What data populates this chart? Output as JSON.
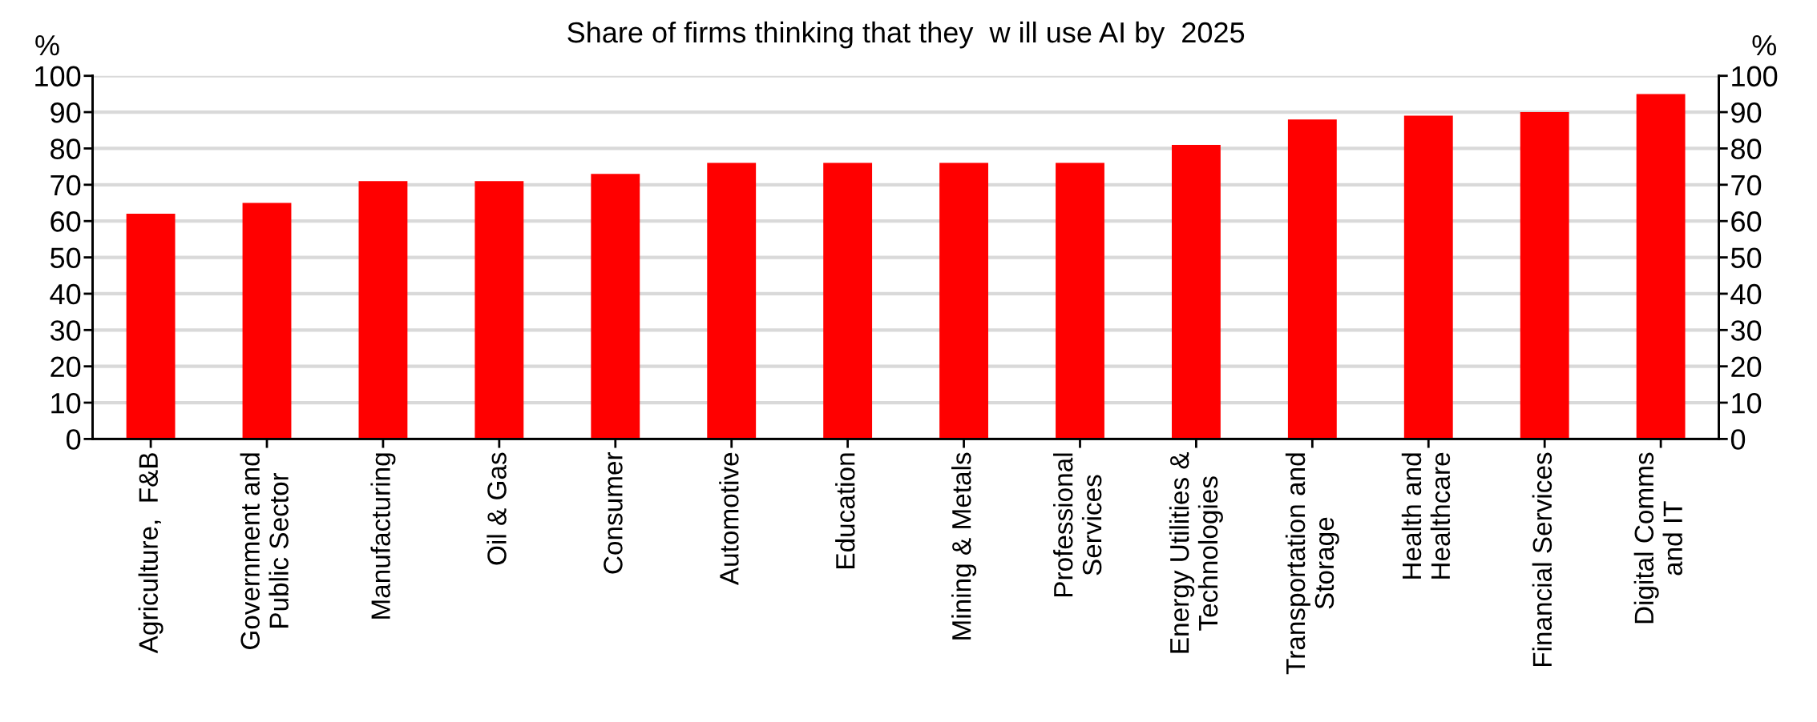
{
  "chart_data": {
    "type": "bar",
    "title": "Share of firms thinking that they  w ill use AI by  2025",
    "categories": [
      "Agriculture,  F&B",
      "Government and\nPublic Sector",
      "Manufacturing",
      "Oil & Gas",
      "Consumer",
      "Automotive",
      "Education",
      "Mining & Metals",
      "Professional\nServices",
      "Energy Utilities &\nTechnologies",
      "Transportation and\nStorage",
      "Health and\nHealthcare",
      "Financial Services",
      "Digital Comms\nand IT"
    ],
    "series": [
      {
        "color": "#ff0000",
        "values": [
          62,
          65,
          71,
          71,
          73,
          76,
          76,
          76,
          76,
          81,
          88,
          89,
          90,
          95
        ]
      }
    ],
    "ylabel": "%",
    "y2label": "%",
    "ylim": [
      0,
      100
    ],
    "yticks": [
      0,
      10,
      20,
      30,
      40,
      50,
      60,
      70,
      80,
      90,
      100
    ],
    "y2lim": [
      0,
      100
    ],
    "y2ticks": [
      0,
      10,
      20,
      30,
      40,
      50,
      60,
      70,
      80,
      90,
      100
    ],
    "grid": "y",
    "legend": false
  }
}
